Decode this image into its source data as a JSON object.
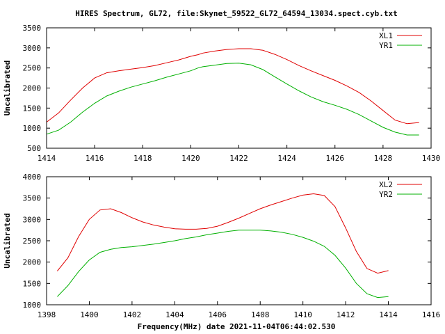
{
  "title": "HIRES Spectrum, GL72, file:Skynet_59522_GL72_64594_13034.spect.cyb.txt",
  "xlabel": "Frequency(MHz) date 2021-11-04T06:44:02.530",
  "chart_data": [
    {
      "type": "line",
      "ylabel": "Uncalibrated",
      "xlim": [
        1414,
        1430
      ],
      "ylim": [
        500,
        3500
      ],
      "xticks": [
        1414,
        1416,
        1418,
        1420,
        1422,
        1424,
        1426,
        1428,
        1430
      ],
      "yticks": [
        500,
        1000,
        1500,
        2000,
        2500,
        3000,
        3500
      ],
      "legend_position": "top-right",
      "series": [
        {
          "name": "XL1",
          "color": "#e00000",
          "x": [
            1414.0,
            1414.5,
            1415.0,
            1415.5,
            1416.0,
            1416.5,
            1417.0,
            1417.5,
            1418.0,
            1418.5,
            1419.0,
            1419.5,
            1420.0,
            1420.3,
            1420.5,
            1421.0,
            1421.5,
            1422.0,
            1422.5,
            1423.0,
            1423.5,
            1424.0,
            1424.5,
            1425.0,
            1425.5,
            1426.0,
            1426.5,
            1427.0,
            1427.5,
            1428.0,
            1428.5,
            1429.0,
            1429.5
          ],
          "y": [
            1150,
            1380,
            1700,
            2000,
            2250,
            2380,
            2430,
            2470,
            2510,
            2560,
            2630,
            2700,
            2790,
            2830,
            2870,
            2920,
            2960,
            2980,
            2980,
            2940,
            2840,
            2710,
            2560,
            2430,
            2310,
            2190,
            2050,
            1890,
            1680,
            1440,
            1200,
            1110,
            1140
          ]
        },
        {
          "name": "YR1",
          "color": "#00b000",
          "x": [
            1414.0,
            1414.5,
            1415.0,
            1415.5,
            1416.0,
            1416.5,
            1417.0,
            1417.5,
            1418.0,
            1418.5,
            1419.0,
            1419.5,
            1420.0,
            1420.3,
            1420.5,
            1421.0,
            1421.5,
            1422.0,
            1422.5,
            1423.0,
            1423.5,
            1424.0,
            1424.5,
            1425.0,
            1425.5,
            1426.0,
            1426.5,
            1427.0,
            1427.5,
            1428.0,
            1428.5,
            1429.0,
            1429.5
          ],
          "y": [
            850,
            950,
            1150,
            1400,
            1620,
            1800,
            1920,
            2020,
            2100,
            2180,
            2270,
            2350,
            2430,
            2500,
            2530,
            2570,
            2610,
            2620,
            2580,
            2460,
            2280,
            2100,
            1930,
            1780,
            1660,
            1570,
            1470,
            1340,
            1180,
            1020,
            900,
            830,
            830
          ]
        }
      ]
    },
    {
      "type": "line",
      "ylabel": "Uncalibrated",
      "xlim": [
        1398,
        1416
      ],
      "ylim": [
        1000,
        4000
      ],
      "xticks": [
        1398,
        1400,
        1402,
        1404,
        1406,
        1408,
        1410,
        1412,
        1414,
        1416
      ],
      "yticks": [
        1000,
        1500,
        2000,
        2500,
        3000,
        3500,
        4000
      ],
      "legend_position": "top-right",
      "series": [
        {
          "name": "XL2",
          "color": "#e00000",
          "x": [
            1398.5,
            1399.0,
            1399.5,
            1400.0,
            1400.5,
            1401.0,
            1401.5,
            1402.0,
            1402.5,
            1403.0,
            1403.5,
            1404.0,
            1404.5,
            1405.0,
            1405.5,
            1406.0,
            1406.5,
            1407.0,
            1407.5,
            1408.0,
            1408.5,
            1409.0,
            1409.5,
            1410.0,
            1410.5,
            1411.0,
            1411.5,
            1412.0,
            1412.5,
            1413.0,
            1413.5,
            1414.0
          ],
          "y": [
            1790,
            2100,
            2600,
            3000,
            3220,
            3250,
            3160,
            3040,
            2940,
            2870,
            2820,
            2780,
            2770,
            2770,
            2790,
            2840,
            2930,
            3030,
            3140,
            3250,
            3340,
            3420,
            3500,
            3570,
            3600,
            3560,
            3300,
            2800,
            2250,
            1850,
            1740,
            1800
          ]
        },
        {
          "name": "YR2",
          "color": "#00b000",
          "x": [
            1398.5,
            1399.0,
            1399.5,
            1400.0,
            1400.5,
            1401.0,
            1401.5,
            1402.0,
            1402.5,
            1403.0,
            1403.5,
            1404.0,
            1404.5,
            1405.0,
            1405.5,
            1406.0,
            1406.5,
            1407.0,
            1407.5,
            1408.0,
            1408.5,
            1409.0,
            1409.5,
            1410.0,
            1410.5,
            1411.0,
            1411.5,
            1412.0,
            1412.5,
            1413.0,
            1413.5,
            1414.0
          ],
          "y": [
            1190,
            1450,
            1780,
            2050,
            2230,
            2300,
            2340,
            2360,
            2390,
            2420,
            2460,
            2500,
            2550,
            2590,
            2640,
            2680,
            2720,
            2750,
            2750,
            2750,
            2730,
            2700,
            2650,
            2580,
            2490,
            2370,
            2160,
            1860,
            1500,
            1260,
            1170,
            1190
          ]
        }
      ]
    }
  ]
}
